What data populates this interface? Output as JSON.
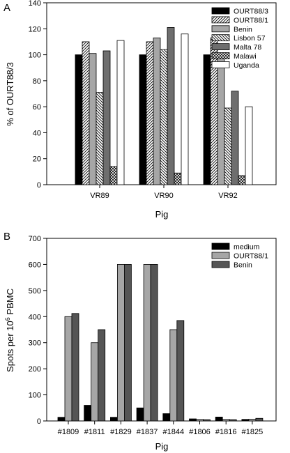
{
  "chart_data": [
    {
      "panel_label": "A",
      "type": "bar",
      "categories": [
        "VR89",
        "VR90",
        "VR92"
      ],
      "series": [
        {
          "name": "OURT88/3",
          "values": [
            100,
            100,
            100
          ]
        },
        {
          "name": "OURT88/1",
          "values": [
            110,
            110,
            113
          ]
        },
        {
          "name": "Benin",
          "values": [
            101,
            113,
            101
          ]
        },
        {
          "name": "Lisbon 57",
          "values": [
            71,
            104,
            59
          ]
        },
        {
          "name": "Malta 78",
          "values": [
            103,
            121,
            72
          ]
        },
        {
          "name": "Malawi",
          "values": [
            14,
            9,
            7
          ]
        },
        {
          "name": "Uganda",
          "values": [
            111,
            116,
            60
          ]
        }
      ],
      "xlabel": "Pig",
      "ylabel": "% of OURT88/3",
      "ylim": [
        0,
        140
      ],
      "yticks": [
        0,
        20,
        40,
        60,
        80,
        100,
        120,
        140
      ],
      "legend": "top-right"
    },
    {
      "panel_label": "B",
      "type": "bar",
      "categories": [
        "#1809",
        "#1811",
        "#1829",
        "#1837",
        "#1844",
        "#1806",
        "#1816",
        "#1825"
      ],
      "series": [
        {
          "name": "medium",
          "values": [
            14,
            60,
            14,
            50,
            28,
            8,
            15,
            6
          ]
        },
        {
          "name": "OURT88/1",
          "values": [
            400,
            300,
            600,
            600,
            350,
            6,
            6,
            7
          ]
        },
        {
          "name": "Benin",
          "values": [
            412,
            350,
            600,
            600,
            385,
            5,
            5,
            10
          ]
        }
      ],
      "xlabel": "Pig",
      "ylabel_main": "Spots per 10",
      "ylabel_sup": "6",
      "ylabel_tail": " PBMC",
      "ylim": [
        0,
        700
      ],
      "yticks": [
        0,
        100,
        200,
        300,
        400,
        500,
        600,
        700
      ],
      "legend": "top-right"
    }
  ]
}
